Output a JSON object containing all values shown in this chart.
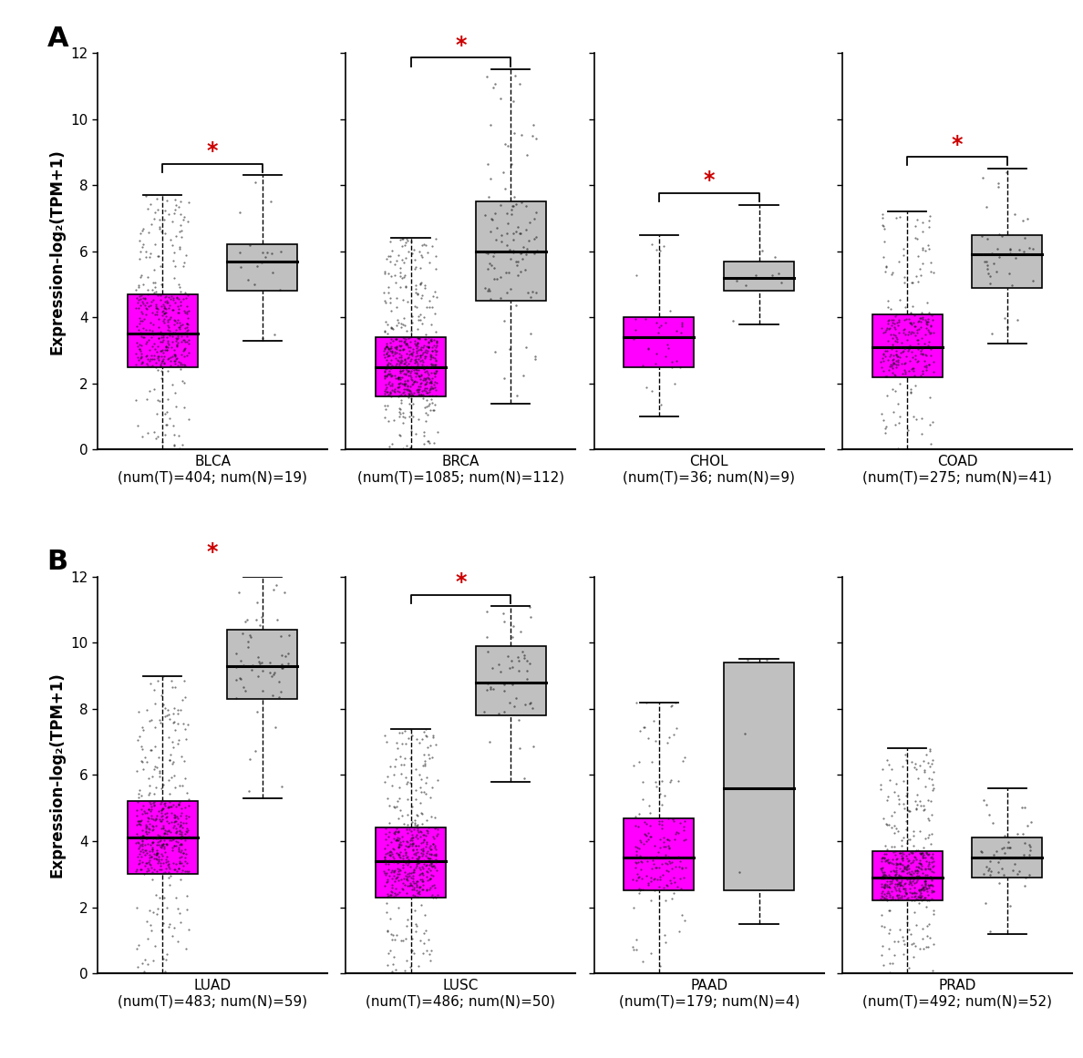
{
  "panels": {
    "A": {
      "cancers": [
        {
          "name": "BLCA",
          "label": "(num(T)=404; num(N)=19)",
          "tumor": {
            "q1": 2.5,
            "median": 3.5,
            "q3": 4.7,
            "whisker_low": 0.0,
            "whisker_high": 7.7,
            "n": 404
          },
          "normal": {
            "q1": 4.8,
            "median": 5.7,
            "q3": 6.2,
            "whisker_low": 3.3,
            "whisker_high": 8.3,
            "n": 19
          },
          "sig": true
        },
        {
          "name": "BRCA",
          "label": "(num(T)=1085; num(N)=112)",
          "tumor": {
            "q1": 1.6,
            "median": 2.5,
            "q3": 3.4,
            "whisker_low": 0.0,
            "whisker_high": 6.4,
            "n": 1085
          },
          "normal": {
            "q1": 4.5,
            "median": 6.0,
            "q3": 7.5,
            "whisker_low": 1.4,
            "whisker_high": 11.5,
            "n": 112
          },
          "sig": true
        },
        {
          "name": "CHOL",
          "label": "(num(T)=36; num(N)=9)",
          "tumor": {
            "q1": 2.5,
            "median": 3.4,
            "q3": 4.0,
            "whisker_low": 1.0,
            "whisker_high": 6.5,
            "n": 36
          },
          "normal": {
            "q1": 4.8,
            "median": 5.2,
            "q3": 5.7,
            "whisker_low": 3.8,
            "whisker_high": 7.4,
            "n": 9
          },
          "sig": true
        },
        {
          "name": "COAD",
          "label": "(num(T)=275; num(N)=41)",
          "tumor": {
            "q1": 2.2,
            "median": 3.1,
            "q3": 4.1,
            "whisker_low": 0.0,
            "whisker_high": 7.2,
            "n": 275
          },
          "normal": {
            "q1": 4.9,
            "median": 5.9,
            "q3": 6.5,
            "whisker_low": 3.2,
            "whisker_high": 8.5,
            "n": 41
          },
          "sig": true
        }
      ]
    },
    "B": {
      "cancers": [
        {
          "name": "LUAD",
          "label": "(num(T)=483; num(N)=59)",
          "tumor": {
            "q1": 3.0,
            "median": 4.1,
            "q3": 5.2,
            "whisker_low": 0.0,
            "whisker_high": 9.0,
            "n": 483
          },
          "normal": {
            "q1": 8.3,
            "median": 9.3,
            "q3": 10.4,
            "whisker_low": 5.3,
            "whisker_high": 12.0,
            "n": 59
          },
          "sig": true
        },
        {
          "name": "LUSC",
          "label": "(num(T)=486; num(N)=50)",
          "tumor": {
            "q1": 2.3,
            "median": 3.4,
            "q3": 4.4,
            "whisker_low": 0.0,
            "whisker_high": 7.4,
            "n": 486
          },
          "normal": {
            "q1": 7.8,
            "median": 8.8,
            "q3": 9.9,
            "whisker_low": 5.8,
            "whisker_high": 11.1,
            "n": 50
          },
          "sig": true
        },
        {
          "name": "PAAD",
          "label": "(num(T)=179; num(N)=4)",
          "tumor": {
            "q1": 2.5,
            "median": 3.5,
            "q3": 4.7,
            "whisker_low": 0.0,
            "whisker_high": 8.2,
            "n": 179
          },
          "normal": {
            "q1": 2.5,
            "median": 5.6,
            "q3": 9.4,
            "whisker_low": 1.5,
            "whisker_high": 9.5,
            "n": 4
          },
          "sig": false
        },
        {
          "name": "PRAD",
          "label": "(num(T)=492; num(N)=52)",
          "tumor": {
            "q1": 2.2,
            "median": 2.9,
            "q3": 3.7,
            "whisker_low": 0.0,
            "whisker_high": 6.8,
            "n": 492
          },
          "normal": {
            "q1": 2.9,
            "median": 3.5,
            "q3": 4.1,
            "whisker_low": 1.2,
            "whisker_high": 5.6,
            "n": 52
          },
          "sig": false
        }
      ]
    }
  },
  "tumor_color": "#FF00FF",
  "normal_color": "#C0C0C0",
  "sig_color": "#CC0000",
  "ylim": [
    0,
    12
  ],
  "yticks": [
    0,
    2,
    4,
    6,
    8,
    10,
    12
  ],
  "ylabel": "Expression-log₂(TPM+1)",
  "dot_color": "#111111",
  "dot_alpha": 0.55,
  "dot_size": 2.5
}
